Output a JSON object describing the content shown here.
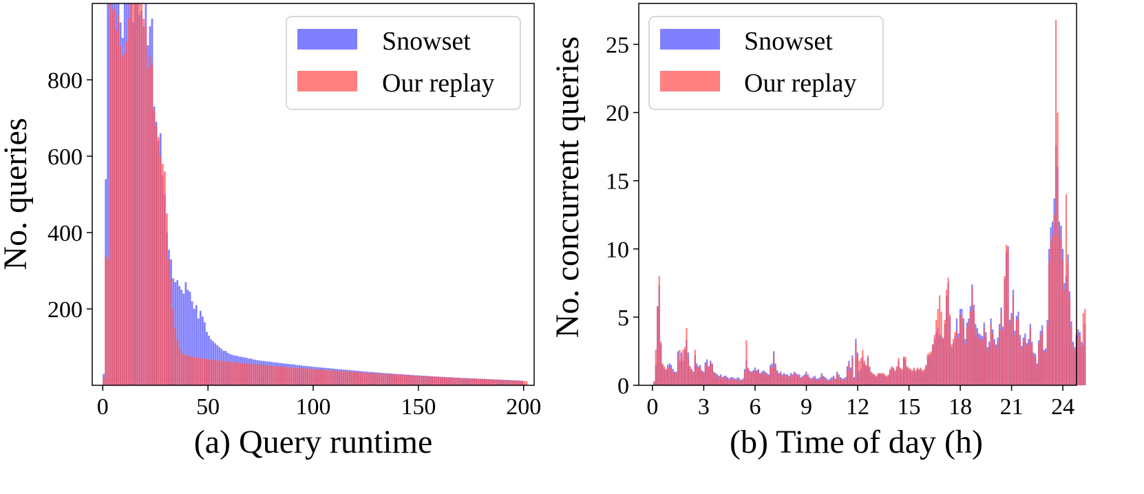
{
  "colors": {
    "snowset": "#5555ff",
    "replay": "#ff5555",
    "axis": "#000000",
    "legend_border": "#cccccc"
  },
  "chart_data": [
    {
      "id": "runtime",
      "type": "bar",
      "caption": "(a) Query runtime",
      "xlabel": "",
      "ylabel": "No. queries",
      "xlim": [
        -5,
        205
      ],
      "ylim": [
        0,
        1000
      ],
      "xticks": [
        0,
        50,
        100,
        150,
        200
      ],
      "yticks": [
        200,
        400,
        600,
        800
      ],
      "bin_width": 1,
      "grid": false,
      "legend_position": "top-right",
      "series": [
        {
          "name": "Snowset",
          "x_start": 0,
          "values": [
            30,
            540,
            1000,
            1000,
            1000,
            1000,
            1000,
            1000,
            950,
            910,
            1000,
            1000,
            1000,
            1000,
            950,
            1000,
            1000,
            970,
            980,
            940,
            1000,
            890,
            940,
            960,
            730,
            690,
            640,
            660,
            550,
            500,
            400,
            355,
            330,
            280,
            270,
            275,
            260,
            250,
            240,
            270,
            250,
            245,
            220,
            200,
            210,
            175,
            195,
            180,
            165,
            140,
            130,
            120,
            115,
            110,
            105,
            100,
            95,
            90,
            90,
            85,
            82,
            80,
            78,
            78,
            76,
            75,
            74,
            73,
            72,
            70,
            70,
            68,
            67,
            66,
            65,
            64,
            64,
            63,
            62,
            62,
            61,
            60,
            60,
            59,
            58,
            58,
            57,
            56,
            56,
            55,
            55,
            54,
            53,
            53,
            52,
            51,
            51,
            50,
            50,
            49,
            48,
            48,
            47,
            47,
            46,
            46,
            45,
            45,
            44,
            44,
            43,
            43,
            42,
            42,
            41,
            41,
            40,
            40,
            39,
            39,
            38,
            38,
            37,
            37,
            36,
            36,
            35,
            35,
            35,
            34,
            34,
            33,
            33,
            32,
            32,
            31,
            31,
            31,
            30,
            30,
            29,
            29,
            29,
            28,
            28,
            28,
            27,
            27,
            26,
            26,
            26,
            25,
            25,
            25,
            24,
            24,
            24,
            23,
            23,
            23,
            22,
            22,
            22,
            21,
            21,
            21,
            21,
            20,
            20,
            20,
            19,
            19,
            19,
            19,
            18,
            18,
            18,
            18,
            17,
            17,
            17,
            17,
            16,
            16,
            16,
            16,
            15,
            15,
            15,
            15,
            14,
            14,
            14,
            14,
            13,
            13,
            13,
            13,
            12,
            12
          ]
        },
        {
          "name": "Our replay",
          "x_start": 0,
          "values": [
            20,
            340,
            330,
            1000,
            980,
            990,
            930,
            970,
            890,
            860,
            870,
            900,
            960,
            1000,
            1000,
            1000,
            1000,
            1000,
            1000,
            960,
            940,
            830,
            860,
            840,
            720,
            680,
            650,
            600,
            580,
            560,
            450,
            330,
            280,
            200,
            150,
            120,
            100,
            85,
            80,
            80,
            78,
            76,
            75,
            74,
            73,
            72,
            71,
            70,
            70,
            69,
            68,
            67,
            67,
            66,
            65,
            65,
            64,
            63,
            63,
            62,
            61,
            61,
            60,
            60,
            59,
            58,
            58,
            57,
            57,
            56,
            56,
            55,
            55,
            54,
            54,
            53,
            53,
            52,
            52,
            51,
            51,
            50,
            50,
            49,
            49,
            49,
            48,
            48,
            47,
            47,
            46,
            46,
            46,
            45,
            45,
            44,
            44,
            44,
            43,
            43,
            42,
            42,
            42,
            41,
            41,
            40,
            40,
            40,
            39,
            39,
            39,
            38,
            38,
            37,
            37,
            37,
            36,
            36,
            36,
            35,
            35,
            35,
            34,
            34,
            33,
            33,
            33,
            32,
            32,
            32,
            31,
            31,
            31,
            30,
            30,
            30,
            29,
            29,
            29,
            28,
            28,
            28,
            27,
            27,
            27,
            26,
            26,
            26,
            25,
            25,
            25,
            25,
            24,
            24,
            24,
            23,
            23,
            23,
            22,
            22,
            22,
            22,
            21,
            21,
            21,
            20,
            20,
            20,
            20,
            19,
            19,
            19,
            18,
            18,
            18,
            18,
            17,
            17,
            17,
            17,
            16,
            16,
            16,
            16,
            15,
            15,
            15,
            15,
            14,
            14,
            14,
            14,
            13,
            13,
            13,
            13,
            12,
            12,
            12,
            12,
            11,
            11
          ]
        }
      ]
    },
    {
      "id": "timeofday",
      "type": "bar",
      "caption": "(b) Time of day (h)",
      "xlabel": "",
      "ylabel": "No. concurrent queries",
      "xlim": [
        -0.8,
        24.8
      ],
      "ylim": [
        0,
        28
      ],
      "xticks": [
        0,
        3,
        6,
        9,
        12,
        15,
        18,
        21,
        24
      ],
      "yticks": [
        0,
        5,
        10,
        15,
        20,
        25
      ],
      "bin_width": 0.1,
      "grid": false,
      "legend_position": "top-left",
      "series": [
        {
          "name": "Snowset",
          "x_start": 0.05,
          "values": [
            0.2,
            1.5,
            5.8,
            7.3,
            3.0,
            1.5,
            1.2,
            1.1,
            1.5,
            1.6,
            1.5,
            1.2,
            1.0,
            1.0,
            2.5,
            1.8,
            2.4,
            1.8,
            2.6,
            3.3,
            2.4,
            1.4,
            1.2,
            1.0,
            2.2,
            1.6,
            1.4,
            1.5,
            1.1,
            1.0,
            1.7,
            1.9,
            1.4,
            1.8,
            1.6,
            1.0,
            0.9,
            0.8,
            0.7,
            0.8,
            0.6,
            0.7,
            0.7,
            0.6,
            0.5,
            0.6,
            0.6,
            0.5,
            0.5,
            0.6,
            0.5,
            0.4,
            0.5,
            1.2,
            1.8,
            1.2,
            1.1,
            1.0,
            1.1,
            1.3,
            1.1,
            1.2,
            0.9,
            1.0,
            1.1,
            1.0,
            0.9,
            0.8,
            1.5,
            1.6,
            2.5,
            1.6,
            1.1,
            0.9,
            1.0,
            0.8,
            0.9,
            0.8,
            0.8,
            0.7,
            0.9,
            0.8,
            1.0,
            0.9,
            0.8,
            0.8,
            0.6,
            0.7,
            0.8,
            1.0,
            0.8,
            0.6,
            0.5,
            0.6,
            0.7,
            0.5,
            0.5,
            0.6,
            0.9,
            0.7,
            0.6,
            0.5,
            0.4,
            0.5,
            0.6,
            0.7,
            0.5,
            1.0,
            0.8,
            0.6,
            0.5,
            0.5,
            0.6,
            1.4,
            1.8,
            1.3,
            2.2,
            0.6,
            3.4,
            2.4,
            1.0,
            1.2,
            2.1,
            1.6,
            1.4,
            2.0,
            1.3,
            0.9,
            0.8,
            0.7,
            0.6,
            0.8,
            0.8,
            0.8,
            0.8,
            0.7,
            0.6,
            0.7,
            1.1,
            1.3,
            1.2,
            1.0,
            1.3,
            1.8,
            1.2,
            1.1,
            2.0,
            1.9,
            1.3,
            1.2,
            1.1,
            1.0,
            1.2,
            1.0,
            1.2,
            1.1,
            1.2,
            1.0,
            1.1,
            1.4,
            2.1,
            2.2,
            2.3,
            3.0,
            3.4,
            3.9,
            4.2,
            3.7,
            3.6,
            3.4,
            4.5,
            6.5,
            7.5,
            5.0,
            2.8,
            3.1,
            3.6,
            4.9,
            3.8,
            5.6,
            5.6,
            4.9,
            3.4,
            4.6,
            4.9,
            5.8,
            7.4,
            5.9,
            4.5,
            4.2,
            3.8,
            3.7,
            3.6,
            4.6,
            3.9,
            2.8,
            3.2,
            4.9,
            4.1,
            3.4,
            3.0,
            3.5,
            4.5,
            5.7,
            4.3,
            7.8,
            9.8,
            10.2,
            4.8,
            5.3,
            7.0,
            4.0,
            5.1,
            5.4,
            3.7,
            2.9,
            3.5,
            3.8,
            3.1,
            3.4,
            4.5,
            3.2,
            2.4,
            2.3,
            1.6,
            3.3,
            4.0,
            4.4,
            2.6,
            2.7,
            4.8,
            10.0,
            11.6,
            12.0,
            13.7,
            17.6,
            16.0,
            12.0,
            11.7,
            10.0,
            7.5,
            8.0,
            9.6,
            6.9,
            4.7,
            3.2,
            2.8,
            3.7,
            4.1,
            3.9,
            3.2,
            3.0,
            4.5
          ]
        },
        {
          "name": "Our replay",
          "x_start": 0.05,
          "values": [
            0.3,
            2.6,
            5.7,
            8.0,
            3.2,
            1.6,
            1.4,
            1.2,
            1.3,
            1.4,
            1.3,
            1.1,
            0.9,
            0.9,
            2.2,
            2.6,
            1.8,
            2.6,
            2.8,
            4.2,
            2.0,
            1.4,
            1.1,
            1.0,
            2.6,
            1.5,
            1.3,
            1.3,
            1.0,
            0.9,
            1.5,
            1.6,
            1.3,
            1.7,
            1.5,
            0.9,
            0.8,
            0.7,
            0.6,
            0.7,
            0.5,
            0.6,
            0.6,
            0.5,
            0.4,
            0.5,
            0.5,
            0.4,
            0.4,
            0.5,
            0.4,
            0.3,
            0.4,
            1.0,
            3.3,
            1.3,
            1.0,
            0.9,
            1.0,
            1.1,
            1.0,
            1.1,
            0.8,
            0.9,
            1.0,
            0.9,
            0.8,
            0.7,
            1.3,
            1.4,
            2.2,
            1.4,
            1.0,
            0.8,
            0.9,
            0.7,
            0.8,
            0.7,
            0.7,
            0.6,
            0.8,
            0.7,
            0.9,
            0.8,
            0.7,
            0.7,
            0.5,
            0.6,
            0.7,
            0.9,
            0.7,
            0.5,
            0.4,
            0.5,
            0.6,
            0.4,
            0.4,
            0.5,
            0.8,
            0.6,
            0.5,
            0.4,
            0.3,
            0.4,
            0.5,
            0.6,
            0.4,
            0.9,
            0.7,
            0.5,
            0.4,
            0.4,
            0.5,
            1.2,
            1.6,
            1.1,
            2.0,
            0.5,
            3.0,
            2.2,
            1.8,
            2.0,
            2.6,
            1.8,
            1.5,
            2.2,
            1.4,
            1.0,
            0.9,
            0.8,
            0.7,
            0.9,
            0.9,
            0.9,
            0.9,
            0.8,
            0.7,
            0.8,
            1.2,
            1.4,
            1.3,
            1.1,
            1.4,
            2.0,
            1.3,
            1.2,
            2.1,
            2.1,
            1.4,
            1.3,
            1.2,
            1.1,
            1.3,
            1.1,
            1.3,
            1.2,
            1.3,
            1.1,
            1.2,
            1.5,
            2.3,
            2.4,
            2.5,
            3.0,
            3.7,
            4.8,
            5.6,
            6.6,
            5.4,
            3.5,
            4.8,
            7.0,
            7.9,
            5.2,
            3.0,
            3.4,
            3.9,
            4.0,
            3.5,
            5.2,
            5.0,
            4.5,
            3.0,
            4.2,
            4.6,
            5.4,
            7.1,
            5.5,
            4.1,
            3.8,
            3.5,
            3.4,
            3.3,
            4.2,
            3.6,
            2.6,
            2.9,
            4.5,
            3.8,
            3.1,
            2.7,
            3.2,
            4.1,
            5.3,
            4.0,
            8.0,
            10.3,
            10.0,
            4.5,
            5.0,
            6.5,
            3.7,
            4.8,
            5.0,
            3.4,
            2.7,
            3.2,
            3.5,
            2.9,
            3.1,
            4.2,
            3.0,
            2.2,
            2.1,
            1.5,
            3.1,
            3.7,
            4.0,
            2.4,
            2.5,
            4.4,
            9.0,
            10.5,
            11.0,
            12.5,
            26.8,
            20.0,
            11.5,
            10.8,
            9.2,
            7.0,
            14.0,
            9.0,
            6.4,
            4.3,
            3.0,
            2.6,
            3.4,
            3.8,
            3.6,
            2.9,
            5.3,
            5.6
          ]
        }
      ]
    }
  ]
}
